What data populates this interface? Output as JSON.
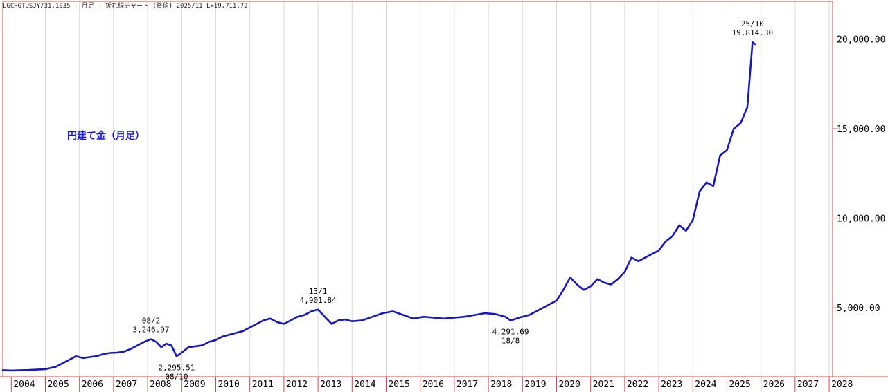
{
  "header": "LGCHGTUSJY/31.1035 - 月足 - 折れ線チャート (終値)  2025/11 L=19,711.72",
  "chart_data": {
    "type": "line",
    "title": "円建て金（月足）",
    "xlabel": "",
    "ylabel": "",
    "x_tick_labels": [
      "2004",
      "2005",
      "2006",
      "2007",
      "2008",
      "2009",
      "2010",
      "2011",
      "2012",
      "2013",
      "2014",
      "2015",
      "2016",
      "2017",
      "2018",
      "2019",
      "2020",
      "2021",
      "2022",
      "2023",
      "2024",
      "2025",
      "2026",
      "2027",
      "2028"
    ],
    "xlim": [
      2003.75,
      2028.1
    ],
    "ylim": [
      1150,
      22100
    ],
    "y_ticks": [
      5000,
      10000,
      15000,
      20000
    ],
    "y_tick_labels": [
      "5,000.00",
      "10,000.00",
      "15,000.00",
      "20,000.00"
    ],
    "grid": {
      "x": true,
      "y": false
    },
    "line_color": "#1515cc",
    "series": [
      {
        "x": [
          2003.75,
          2004.0,
          2004.5,
          2005.0,
          2005.3,
          2005.6,
          2005.9,
          2006.1,
          2006.3,
          2006.5,
          2006.7,
          2006.9,
          2007.1,
          2007.3,
          2007.5,
          2007.7,
          2007.9,
          2008.1,
          2008.25,
          2008.4,
          2008.55,
          2008.7,
          2008.85,
          2009.0,
          2009.2,
          2009.4,
          2009.6,
          2009.8,
          2010.0,
          2010.2,
          2010.4,
          2010.6,
          2010.8,
          2011.0,
          2011.2,
          2011.4,
          2011.6,
          2011.8,
          2012.0,
          2012.2,
          2012.4,
          2012.6,
          2012.8,
          2013.0,
          2013.2,
          2013.4,
          2013.6,
          2013.8,
          2014.0,
          2014.3,
          2014.6,
          2014.9,
          2015.2,
          2015.5,
          2015.8,
          2016.1,
          2016.4,
          2016.7,
          2017.0,
          2017.3,
          2017.6,
          2017.9,
          2018.2,
          2018.5,
          2018.65,
          2018.9,
          2019.2,
          2019.5,
          2019.8,
          2020.0,
          2020.2,
          2020.4,
          2020.6,
          2020.8,
          2021.0,
          2021.2,
          2021.4,
          2021.6,
          2021.8,
          2022.0,
          2022.2,
          2022.4,
          2022.6,
          2022.8,
          2023.0,
          2023.2,
          2023.4,
          2023.6,
          2023.8,
          2024.0,
          2024.2,
          2024.4,
          2024.6,
          2024.8,
          2025.0,
          2025.2,
          2025.4,
          2025.6,
          2025.75,
          2025.83
        ],
        "y": [
          1520,
          1500,
          1530,
          1580,
          1700,
          2000,
          2300,
          2200,
          2250,
          2300,
          2420,
          2480,
          2500,
          2550,
          2700,
          2900,
          3100,
          3246.97,
          3100,
          2800,
          3000,
          2900,
          2295.51,
          2500,
          2800,
          2850,
          2900,
          3100,
          3200,
          3400,
          3500,
          3600,
          3700,
          3900,
          4100,
          4300,
          4400,
          4200,
          4100,
          4300,
          4500,
          4600,
          4800,
          4901.84,
          4500,
          4100,
          4300,
          4350,
          4250,
          4300,
          4500,
          4700,
          4800,
          4600,
          4400,
          4500,
          4450,
          4400,
          4450,
          4500,
          4600,
          4700,
          4650,
          4500,
          4291.69,
          4450,
          4600,
          4900,
          5200,
          5400,
          6000,
          6700,
          6300,
          6000,
          6200,
          6600,
          6400,
          6300,
          6600,
          7000,
          7800,
          7600,
          7800,
          8000,
          8200,
          8700,
          9000,
          9600,
          9300,
          9900,
          11500,
          12000,
          11800,
          13500,
          13800,
          15000,
          15300,
          16200,
          19814.3,
          19711.72
        ]
      }
    ],
    "annotations": [
      {
        "label": "08/2",
        "value": "3,246.97",
        "x": 2008.1,
        "y": 3246.97,
        "position": "above"
      },
      {
        "label": "08/10",
        "value": "2,295.51",
        "x": 2008.85,
        "y": 2295.51,
        "position": "below"
      },
      {
        "label": "13/1",
        "value": "4,901.84",
        "x": 2013.0,
        "y": 4901.84,
        "position": "above"
      },
      {
        "label": "18/8",
        "value": "4,291.69",
        "x": 2018.65,
        "y": 4291.69,
        "position": "below"
      },
      {
        "label": "25/10",
        "value": "19,814.30",
        "x": 2025.75,
        "y": 19814.3,
        "position": "above"
      }
    ]
  }
}
